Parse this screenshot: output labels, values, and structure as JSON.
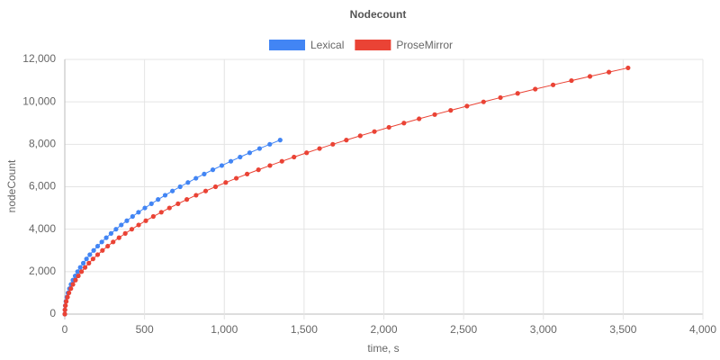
{
  "chart_data": {
    "type": "line",
    "title": "Nodecount",
    "xlabel": "time, s",
    "ylabel": "nodeCount",
    "xlim": [
      0,
      4000
    ],
    "xticks": [
      0,
      500,
      {
        "value": 1000,
        "label": "1,000"
      },
      {
        "value": 1500,
        "label": "1,500"
      },
      {
        "value": 2000,
        "label": "2,000"
      },
      {
        "value": 2500,
        "label": "2,500"
      },
      {
        "value": 3000,
        "label": "3,000"
      },
      {
        "value": 3500,
        "label": "3,500"
      },
      {
        "value": 4000,
        "label": "4,000"
      }
    ],
    "ylim": [
      0,
      12000
    ],
    "yticks": [
      0,
      {
        "value": 2000,
        "label": "2,000"
      },
      {
        "value": 4000,
        "label": "4,000"
      },
      {
        "value": 6000,
        "label": "6,000"
      },
      {
        "value": 8000,
        "label": "8,000"
      },
      {
        "value": 10000,
        "label": "10,000"
      },
      {
        "value": 12000,
        "label": "12,000"
      }
    ],
    "grid": true,
    "legend": "top",
    "series": [
      {
        "name": "Lexical",
        "color": "#4285f4",
        "x": [
          0,
          1,
          3,
          7,
          13,
          20,
          29,
          39,
          51,
          65,
          80,
          97,
          116,
          136,
          157,
          181,
          206,
          232,
          260,
          290,
          321,
          354,
          389,
          425,
          462,
          502,
          543,
          585,
          629,
          675,
          723,
          772,
          822,
          874,
          928,
          984,
          1041,
          1099,
          1159,
          1221,
          1285,
          1350
        ],
        "values": [
          0,
          200,
          400,
          600,
          800,
          1000,
          1200,
          1400,
          1600,
          1800,
          2000,
          2200,
          2400,
          2600,
          2800,
          3000,
          3200,
          3400,
          3600,
          3800,
          4000,
          4200,
          4400,
          4600,
          4800,
          5000,
          5200,
          5400,
          5600,
          5800,
          6000,
          6200,
          6400,
          6600,
          6800,
          7000,
          7200,
          7400,
          7600,
          7800,
          8000,
          8200
        ]
      },
      {
        "name": "ProseMirror",
        "color": "#ea4335",
        "x": [
          0,
          1,
          4,
          9,
          17,
          26,
          38,
          51,
          67,
          85,
          105,
          127,
          151,
          177,
          206,
          236,
          269,
          303,
          340,
          379,
          420,
          463,
          508,
          555,
          605,
          656,
          710,
          765,
          823,
          883,
          945,
          1009,
          1075,
          1143,
          1214,
          1286,
          1361,
          1437,
          1516,
          1597,
          1680,
          1765,
          1852,
          1941,
          2032,
          2126,
          2221,
          2319,
          2419,
          2521,
          2625,
          2731,
          2839,
          2949,
          3061,
          3176,
          3292,
          3411,
          3531
        ],
        "values": [
          0,
          200,
          400,
          600,
          800,
          1000,
          1200,
          1400,
          1600,
          1800,
          2000,
          2200,
          2400,
          2600,
          2800,
          3000,
          3200,
          3400,
          3600,
          3800,
          4000,
          4200,
          4400,
          4600,
          4800,
          5000,
          5200,
          5400,
          5600,
          5800,
          6000,
          6200,
          6400,
          6600,
          6800,
          7000,
          7200,
          7400,
          7600,
          7800,
          8000,
          8200,
          8400,
          8600,
          8800,
          9000,
          9200,
          9400,
          9600,
          9800,
          10000,
          10200,
          10400,
          10600,
          10800,
          11000,
          11200,
          11400,
          11600
        ]
      }
    ]
  }
}
